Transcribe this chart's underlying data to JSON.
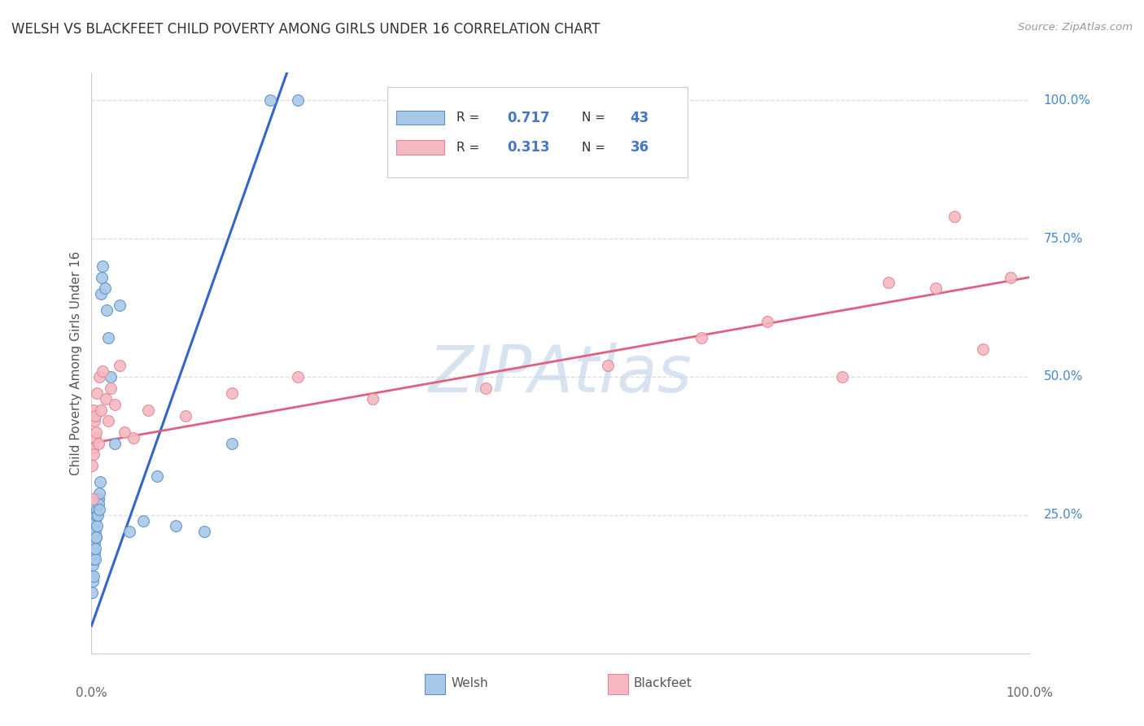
{
  "title": "WELSH VS BLACKFEET CHILD POVERTY AMONG GIRLS UNDER 16 CORRELATION CHART",
  "source": "Source: ZipAtlas.com",
  "ylabel": "Child Poverty Among Girls Under 16",
  "welsh_R": 0.717,
  "welsh_N": 43,
  "blackfeet_R": 0.313,
  "blackfeet_N": 36,
  "welsh_color": "#a8c8e8",
  "blackfeet_color": "#f4b8c0",
  "welsh_edge_color": "#6090c8",
  "blackfeet_edge_color": "#e08898",
  "welsh_line_color": "#3366cc",
  "blackfeet_line_color": "#e06080",
  "watermark": "ZIPAtlas",
  "watermark_color": "#c8d8ec",
  "welsh_x": [
    0.05,
    0.08,
    0.1,
    0.12,
    0.15,
    0.18,
    0.2,
    0.22,
    0.25,
    0.28,
    0.3,
    0.35,
    0.38,
    0.4,
    0.42,
    0.45,
    0.5,
    0.52,
    0.55,
    0.6,
    0.65,
    0.7,
    0.75,
    0.8,
    0.85,
    0.9,
    1.0,
    1.1,
    1.2,
    1.4,
    1.6,
    1.8,
    2.0,
    2.5,
    3.0,
    4.0,
    5.5,
    7.0,
    9.0,
    12.0,
    15.0,
    19.0,
    22.0
  ],
  "welsh_y": [
    14.0,
    11.0,
    16.0,
    13.0,
    19.0,
    14.0,
    21.0,
    17.0,
    22.0,
    18.0,
    20.0,
    22.0,
    17.0,
    24.0,
    19.0,
    21.0,
    25.0,
    21.0,
    23.0,
    26.0,
    25.0,
    28.0,
    27.0,
    29.0,
    26.0,
    31.0,
    65.0,
    68.0,
    70.0,
    66.0,
    62.0,
    57.0,
    50.0,
    38.0,
    63.0,
    22.0,
    24.0,
    32.0,
    23.0,
    22.0,
    38.0,
    100.0,
    100.0
  ],
  "blackfeet_x": [
    0.05,
    0.1,
    0.15,
    0.2,
    0.25,
    0.3,
    0.35,
    0.4,
    0.5,
    0.6,
    0.7,
    0.8,
    1.0,
    1.2,
    1.5,
    1.8,
    2.0,
    2.5,
    3.0,
    3.5,
    4.5,
    6.0,
    10.0,
    15.0,
    22.0,
    30.0,
    42.0,
    55.0,
    65.0,
    72.0,
    80.0,
    85.0,
    90.0,
    92.0,
    95.0,
    98.0
  ],
  "blackfeet_y": [
    34.0,
    28.0,
    37.0,
    44.0,
    36.0,
    42.0,
    39.0,
    43.0,
    40.0,
    47.0,
    38.0,
    50.0,
    44.0,
    51.0,
    46.0,
    42.0,
    48.0,
    45.0,
    52.0,
    40.0,
    39.0,
    44.0,
    43.0,
    47.0,
    50.0,
    46.0,
    48.0,
    52.0,
    57.0,
    60.0,
    50.0,
    67.0,
    66.0,
    79.0,
    55.0,
    68.0
  ],
  "grid_color": "#dddddd",
  "spine_color": "#cccccc"
}
